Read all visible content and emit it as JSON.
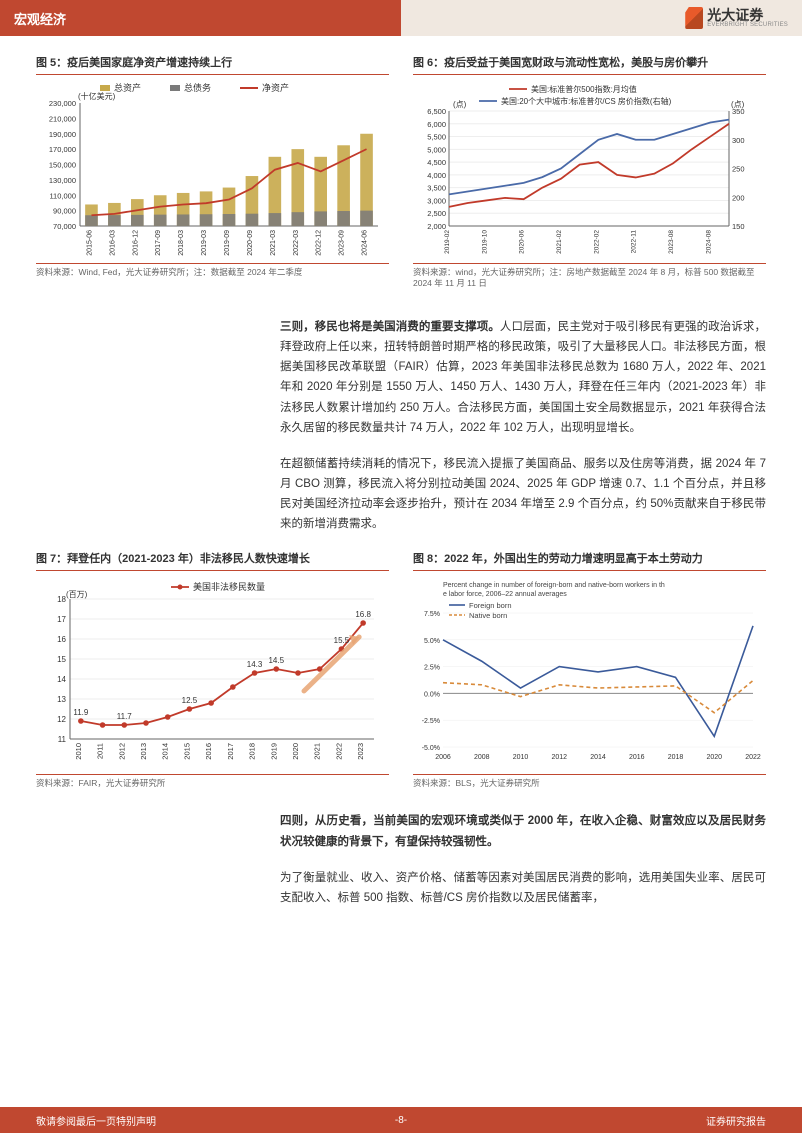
{
  "header": {
    "section": "宏观经济",
    "brand": "光大证券",
    "brand_sub": "EVERBRIGHT SECURITIES"
  },
  "chart5": {
    "title": "图 5：疫后美国家庭净资产增速持续上行",
    "type": "bar+line",
    "ylabel": "(十亿美元)",
    "legend": [
      "总资产",
      "总债务",
      "净资产"
    ],
    "legend_colors": [
      "#c7a94a",
      "#7a7a7a",
      "#c13a2a"
    ],
    "x": [
      "2015-06",
      "2016-03",
      "2016-12",
      "2017-09",
      "2018-03",
      "2019-03",
      "2019-09",
      "2020-09",
      "2021-03",
      "2022-03",
      "2022-12",
      "2023-09",
      "2024-06"
    ],
    "assets": [
      98000,
      100000,
      105000,
      110000,
      113000,
      115000,
      120000,
      135000,
      160000,
      170000,
      160000,
      175000,
      190000
    ],
    "debts": [
      14000,
      14200,
      14500,
      14800,
      15000,
      15300,
      15600,
      16000,
      16800,
      18000,
      19000,
      19500,
      20000
    ],
    "net": [
      84000,
      85800,
      90500,
      95200,
      98000,
      99700,
      104400,
      119000,
      143200,
      152000,
      141000,
      155500,
      170000
    ],
    "ylim": [
      70000,
      230000
    ],
    "yticks": [
      70000,
      90000,
      110000,
      130000,
      150000,
      170000,
      190000,
      210000,
      230000
    ],
    "bar_width": 0.6,
    "bg": "#ffffff",
    "source": "资料来源：Wind, Fed，光大证券研究所；注：数据截至 2024 年二季度"
  },
  "chart6": {
    "title": "图 6：疫后受益于美国宽财政与流动性宽松，美股与房价攀升",
    "type": "line",
    "legend": [
      "美国:标准普尔500指数:月均值",
      "美国:20个大中城市:标准普尔/CS 房价指数(右轴)"
    ],
    "legend_colors": [
      "#c13a2a",
      "#4a6aa8"
    ],
    "ylabel_left": "(点)",
    "ylabel_right": "(点)",
    "x": [
      "2019-02",
      "2019-06",
      "2019-10",
      "2020-02",
      "2020-06",
      "2020-11",
      "2021-02",
      "2021-08",
      "2022-02",
      "2022-05",
      "2022-11",
      "2023-02",
      "2023-08",
      "2024-02",
      "2024-08",
      "2024-11"
    ],
    "sp500": [
      2750,
      2900,
      3000,
      3100,
      3050,
      3500,
      3850,
      4400,
      4500,
      4000,
      3900,
      4050,
      4450,
      5000,
      5500,
      6000
    ],
    "cs": [
      205,
      210,
      215,
      220,
      225,
      235,
      250,
      275,
      300,
      310,
      300,
      300,
      310,
      320,
      330,
      335
    ],
    "ylim_left": [
      2000,
      6500
    ],
    "yticks_left": [
      2000,
      2500,
      3000,
      3500,
      4000,
      4500,
      5000,
      5500,
      6000,
      6500
    ],
    "ylim_right": [
      150,
      350
    ],
    "yticks_right": [
      150,
      200,
      250,
      300,
      350
    ],
    "bg": "#ffffff",
    "source": "资料来源：wind，光大证券研究所；注：房地产数据截至 2024 年 8 月，标普 500 数据截至 2024 年 11 月 11 日"
  },
  "para1": "三则，移民也将是美国消费的重要支撑项。人口层面，民主党对于吸引移民有更强的政治诉求，拜登政府上任以来，扭转特朗普时期严格的移民政策，吸引了大量移民人口。非法移民方面，根据美国移民改革联盟（FAIR）估算，2023 年美国非法移民总数为 1680 万人，2022 年、2021 年和 2020 年分别是 1550 万人、1450 万人、1430 万人，拜登在任三年内（2021-2023 年）非法移民人数累计增加约 250 万人。合法移民方面，美国国土安全局数据显示，2021 年获得合法永久居留的移民数量共计 74 万人，2022 年 102 万人，出现明显增长。",
  "para1_bold": "三则，移民也将是美国消费的重要支撑项。",
  "para2": "在超额储蓄持续消耗的情况下，移民流入提振了美国商品、服务以及住房等消费，据 2024 年 7 月 CBO 测算，移民流入将分别拉动美国 2024、2025 年 GDP 增速 0.7、1.1 个百分点，并且移民对美国经济拉动率会逐步抬升，预计在 2034 年增至 2.9 个百分点，约 50%贡献来自于移民带来的新增消费需求。",
  "chart7": {
    "title": "图 7：拜登任内（2021-2023 年）非法移民人数快速增长",
    "type": "line",
    "legend": [
      "美国非法移民数量"
    ],
    "legend_colors": [
      "#c13a2a"
    ],
    "ylabel": "(百万)",
    "x": [
      "2010",
      "2011",
      "2012",
      "2013",
      "2014",
      "2015",
      "2016",
      "2017",
      "2018",
      "2019",
      "2020",
      "2021",
      "2022",
      "2023"
    ],
    "y": [
      11.9,
      11.7,
      11.7,
      11.8,
      12.1,
      12.5,
      12.8,
      13.6,
      14.3,
      14.5,
      14.3,
      14.5,
      15.5,
      16.8
    ],
    "labels": {
      "2010": "11.9",
      "2012": "11.7",
      "2015": "12.5",
      "2018": "14.3",
      "2019": "14.5",
      "2022": "15.5",
      "2023": "16.8"
    },
    "ylim": [
      11,
      18
    ],
    "yticks": [
      11,
      12,
      13,
      14,
      15,
      16,
      17,
      18
    ],
    "marker_color": "#c13a2a",
    "arrow_color": "#e8a574",
    "bg": "#ffffff",
    "source": "资料来源：FAIR，光大证券研究所"
  },
  "chart8": {
    "title": "图 8：2022 年，外国出生的劳动力增速明显高于本土劳动力",
    "type": "line",
    "subtitle": "Percent change in number of foreign-born and native-born workers in the labor force, 2006–22 annual averages",
    "legend": [
      "Foreign born",
      "Native born"
    ],
    "legend_colors": [
      "#3a5a9a",
      "#d88a3a"
    ],
    "x": [
      2006,
      2008,
      2010,
      2012,
      2014,
      2016,
      2018,
      2020,
      2022
    ],
    "foreign": [
      5.0,
      3.0,
      0.5,
      2.5,
      2.0,
      2.5,
      1.5,
      -4.0,
      6.3
    ],
    "native": [
      1.0,
      0.8,
      -0.3,
      0.8,
      0.5,
      0.6,
      0.7,
      -1.8,
      1.2
    ],
    "ylim": [
      -5.0,
      7.5
    ],
    "yticks": [
      -5.0,
      -2.5,
      0.0,
      2.5,
      5.0,
      7.5
    ],
    "bg": "#ffffff",
    "source": "资料来源：BLS，光大证券研究所"
  },
  "para3_bold": "四则，从历史看，当前美国的宏观环境或类似于 2000 年，在收入企稳、财富效应以及居民财务状况较健康的背景下，有望保持较强韧性。",
  "para4": "为了衡量就业、收入、资产价格、储蓄等因素对美国居民消费的影响，选用美国失业率、居民可支配收入、标普 500 指数、标普/CS 房价指数以及居民储蓄率，",
  "footer": {
    "left": "敬请参阅最后一页特别声明",
    "page": "-8-",
    "right": "证券研究报告"
  }
}
